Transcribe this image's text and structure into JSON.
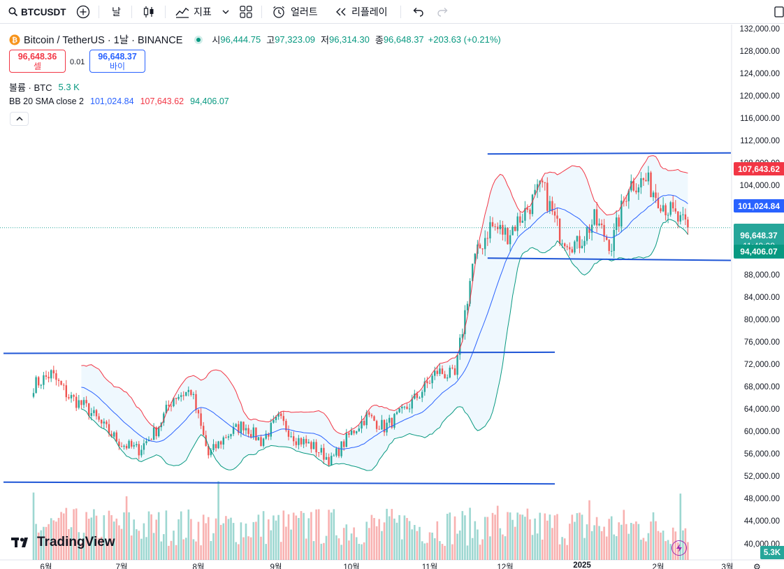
{
  "toolbar": {
    "symbol": "BTCUSDT",
    "interval": "날",
    "indicators_label": "지표",
    "alert_label": "얼러트",
    "replay_label": "리플레이"
  },
  "legend": {
    "title": "Bitcoin / TetherUS · 1날 · BINANCE",
    "open_key": "시",
    "open": "96,444.75",
    "high_key": "고",
    "high": "97,323.09",
    "low_key": "저",
    "low": "96,314.30",
    "close_key": "종",
    "close": "96,648.37",
    "change": "+203.63 (+0.21%)",
    "sell_price": "96,648.36",
    "sell_label": "셀",
    "spread": "0.01",
    "buy_price": "96,648.37",
    "buy_label": "바이",
    "volume_label": "볼륨 · BTC",
    "volume_value": "5.3 K",
    "bb_label": "BB 20 SMA close 2",
    "bb_basis": "101,024.84",
    "bb_upper": "107,643.62",
    "bb_lower": "94,406.07"
  },
  "price_labels": {
    "upper": "107,643.62",
    "basis": "101,024.84",
    "last": "96,648.37",
    "countdown": "11:48:08",
    "lower": "94,406.07",
    "volume": "5.3K"
  },
  "colors": {
    "up": "#26a69a",
    "down": "#ef5350",
    "bb_basis": "#2962ff",
    "bb_upper": "#f23645",
    "bb_lower": "#089981",
    "bb_fill": "#2196f3",
    "trend": "#1f56d6",
    "last_price": "#26a69a"
  },
  "branding": "TradingView",
  "chart_data": {
    "type": "candlestick",
    "symbol": "Bitcoin / TetherUS",
    "exchange": "BINANCE",
    "interval": "1D",
    "y_range": [
      38000,
      133000
    ],
    "y_ticks": [
      "132,000.00",
      "128,000.00",
      "124,000.00",
      "120,000.00",
      "116,000.00",
      "112,000.00",
      "108,000.00",
      "104,000.00",
      "100,000.00",
      "96,000.00",
      "92,000.00",
      "88,000.00",
      "84,000.00",
      "80,000.00",
      "76,000.00",
      "72,000.00",
      "68,000.00",
      "64,000.00",
      "60,000.00",
      "56,000.00",
      "52,000.00",
      "48,000.00",
      "44,000.00",
      "40,000.00"
    ],
    "x_ticks": [
      "6월",
      "7월",
      "8월",
      "9월",
      "10월",
      "11월",
      "12월",
      "2025",
      "2월",
      "3월"
    ],
    "close_path": [
      [
        "2024-05-27",
        68500
      ],
      [
        "2024-06-03",
        70500
      ],
      [
        "2024-06-10",
        66500
      ],
      [
        "2024-06-17",
        64500
      ],
      [
        "2024-06-24",
        61000
      ],
      [
        "2024-07-01",
        58000
      ],
      [
        "2024-07-08",
        57000
      ],
      [
        "2024-07-15",
        60500
      ],
      [
        "2024-07-22",
        66500
      ],
      [
        "2024-07-29",
        67500
      ],
      [
        "2024-08-05",
        56000
      ],
      [
        "2024-08-12",
        59500
      ],
      [
        "2024-08-19",
        61500
      ],
      [
        "2024-08-26",
        58500
      ],
      [
        "2024-09-02",
        62500
      ],
      [
        "2024-09-09",
        59000
      ],
      [
        "2024-09-16",
        57500
      ],
      [
        "2024-09-23",
        55000
      ],
      [
        "2024-09-30",
        59500
      ],
      [
        "2024-10-07",
        63000
      ],
      [
        "2024-10-14",
        61000
      ],
      [
        "2024-10-21",
        63500
      ],
      [
        "2024-10-28",
        67000
      ],
      [
        "2024-11-04",
        71000
      ],
      [
        "2024-11-11",
        70000
      ],
      [
        "2024-11-18",
        90000
      ],
      [
        "2024-11-25",
        97000
      ],
      [
        "2024-12-02",
        95500
      ],
      [
        "2024-12-09",
        99500
      ],
      [
        "2024-12-16",
        104000
      ],
      [
        "2024-12-23",
        95500
      ],
      [
        "2024-12-30",
        93500
      ],
      [
        "2025-01-06",
        98000
      ],
      [
        "2025-01-13",
        93500
      ],
      [
        "2025-01-20",
        104500
      ],
      [
        "2025-01-27",
        105000
      ],
      [
        "2025-02-03",
        101000
      ],
      [
        "2025-02-10",
        97500
      ],
      [
        "2025-02-13",
        96648.37
      ]
    ],
    "bollinger": {
      "period": 20,
      "source": "close",
      "stddev": 2,
      "basis": 101024.84,
      "upper": 107643.62,
      "lower": 94406.07
    },
    "trendlines": [
      {
        "from": [
          "2024-11-24",
          109800
        ],
        "to": [
          "2025-03-03",
          110000
        ]
      },
      {
        "from": [
          "2024-11-24",
          91200
        ],
        "to": [
          "2025-03-03",
          90800
        ]
      },
      {
        "from": [
          "2024-05-06",
          74200
        ],
        "to": [
          "2024-12-21",
          74400
        ]
      },
      {
        "from": [
          "2024-05-06",
          51200
        ],
        "to": [
          "2024-12-21",
          50900
        ]
      }
    ],
    "last_volume": "5.3K"
  }
}
